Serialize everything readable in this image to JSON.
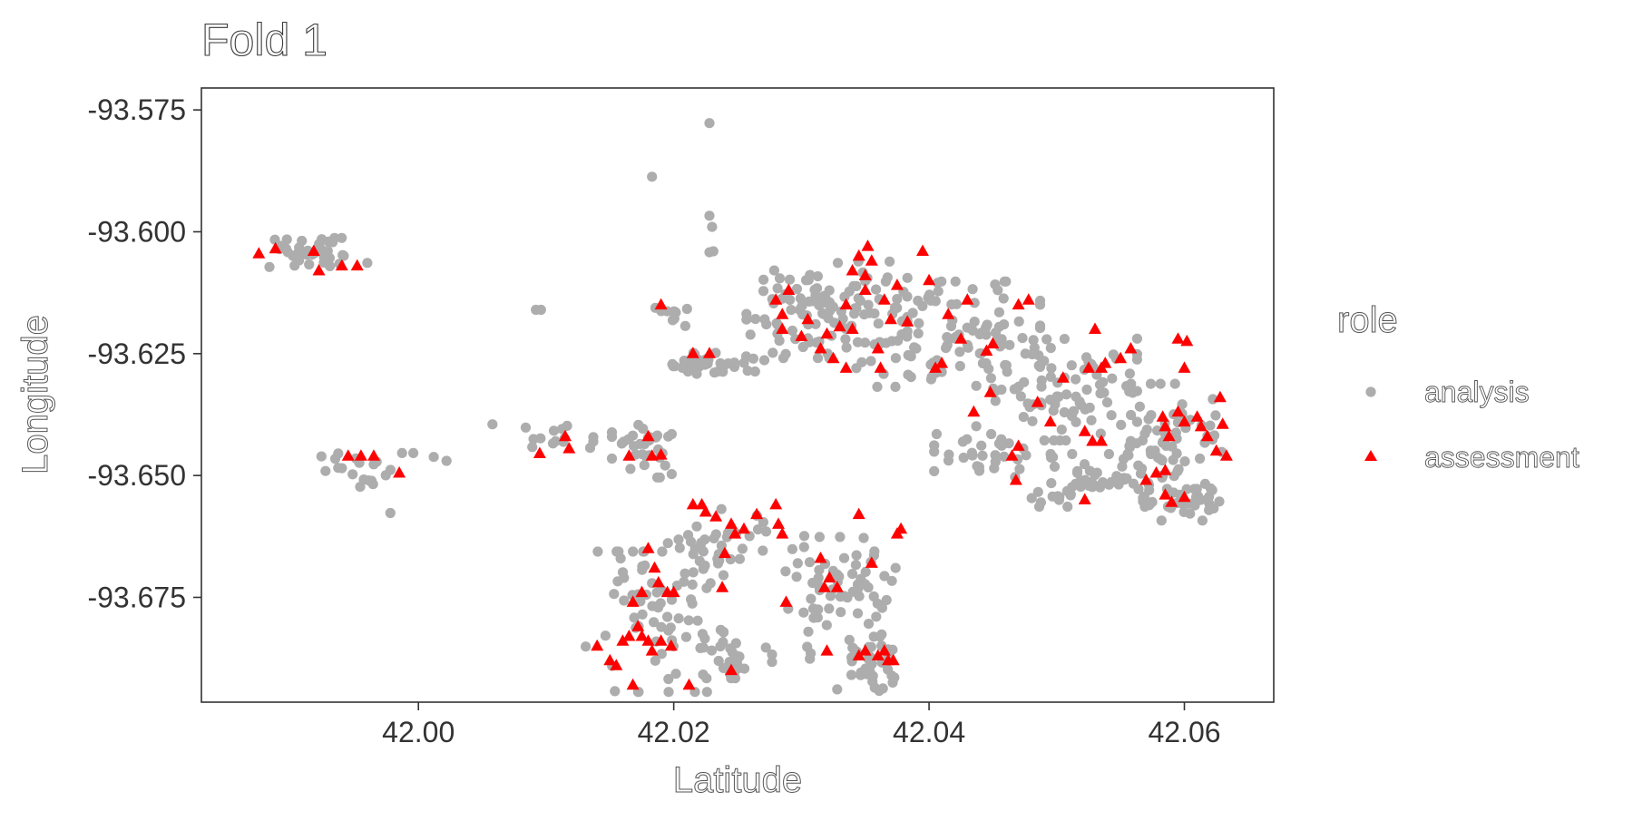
{
  "chart_data": {
    "type": "scatter",
    "title": "Fold 1",
    "xlabel": "Latitude",
    "ylabel": "Longitude",
    "xlim": [
      41.983,
      42.067
    ],
    "ylim": [
      -93.6965,
      -93.5705
    ],
    "x_ticks": [
      42.0,
      42.02,
      42.04,
      42.06
    ],
    "x_tick_labels": [
      "42.00",
      "42.02",
      "42.04",
      "42.06"
    ],
    "y_ticks": [
      -93.575,
      -93.6,
      -93.625,
      -93.65,
      -93.675
    ],
    "y_tick_labels": [
      "-93.575",
      "-93.600",
      "-93.625",
      "-93.650",
      "-93.675"
    ],
    "grid": false,
    "legend": {
      "title": "role",
      "position": "right",
      "entries": [
        {
          "label": "analysis",
          "shape": "circle",
          "color": "#ADADAD"
        },
        {
          "label": "assessment",
          "shape": "triangle",
          "color": "#FF0000"
        }
      ]
    },
    "series": [
      {
        "name": "analysis",
        "marker": "circle",
        "color": "#ADADAD",
        "clusters": [
          {
            "n": 36,
            "cx": 41.9915,
            "cy": -93.6045,
            "sx": 0.0025,
            "sy": 0.0018
          },
          {
            "n": 20,
            "cx": 41.996,
            "cy": -93.649,
            "sx": 0.002,
            "sy": 0.002
          },
          {
            "n": 14,
            "cx": 42.011,
            "cy": -93.642,
            "sx": 0.0015,
            "sy": 0.0013
          },
          {
            "n": 32,
            "cx": 42.0175,
            "cy": -93.645,
            "sx": 0.0013,
            "sy": 0.003
          },
          {
            "n": 10,
            "cx": 42.02,
            "cy": -93.617,
            "sx": 0.0008,
            "sy": 0.0015
          },
          {
            "n": 36,
            "cx": 42.0235,
            "cy": -93.627,
            "sx": 0.002,
            "sy": 0.0012
          },
          {
            "n": 110,
            "cx": 42.032,
            "cy": -93.616,
            "sx": 0.0035,
            "sy": 0.0055
          },
          {
            "n": 95,
            "cx": 42.0415,
            "cy": -93.621,
            "sx": 0.004,
            "sy": 0.006
          },
          {
            "n": 85,
            "cx": 42.05,
            "cy": -93.632,
            "sx": 0.0035,
            "sy": 0.006
          },
          {
            "n": 58,
            "cx": 42.0525,
            "cy": -93.651,
            "sx": 0.0032,
            "sy": 0.003
          },
          {
            "n": 30,
            "cx": 42.044,
            "cy": -93.646,
            "sx": 0.002,
            "sy": 0.0025
          },
          {
            "n": 65,
            "cx": 42.059,
            "cy": -93.642,
            "sx": 0.0022,
            "sy": 0.006
          },
          {
            "n": 30,
            "cx": 42.06,
            "cy": -93.656,
            "sx": 0.0018,
            "sy": 0.0018
          },
          {
            "n": 75,
            "cx": 42.0185,
            "cy": -93.68,
            "sx": 0.003,
            "sy": 0.008
          },
          {
            "n": 38,
            "cx": 42.0235,
            "cy": -93.665,
            "sx": 0.0022,
            "sy": 0.0045
          },
          {
            "n": 24,
            "cx": 42.025,
            "cy": -93.688,
            "sx": 0.0015,
            "sy": 0.002
          },
          {
            "n": 48,
            "cx": 42.032,
            "cy": -93.675,
            "sx": 0.0018,
            "sy": 0.007
          },
          {
            "n": 40,
            "cx": 42.0355,
            "cy": -93.678,
            "sx": 0.0015,
            "sy": 0.009
          },
          {
            "n": 18,
            "cx": 42.036,
            "cy": -93.69,
            "sx": 0.0012,
            "sy": 0.002
          }
        ],
        "points": [
          [
            42.0228,
            -93.5777
          ],
          [
            42.0183,
            -93.5887
          ],
          [
            42.0228,
            -93.5967
          ],
          [
            42.023,
            -93.599
          ],
          [
            42.0228,
            -93.6042
          ],
          [
            42.0231,
            -93.604
          ],
          [
            42.0092,
            -93.616
          ],
          [
            42.0096,
            -93.616
          ],
          [
            42.0058,
            -93.6395
          ],
          [
            41.9978,
            -93.6577
          ],
          [
            42.0022,
            -93.647
          ],
          [
            42.0012,
            -93.6462
          ]
        ]
      },
      {
        "name": "assessment",
        "marker": "triangle",
        "color": "#FF0000",
        "points": [
          [
            41.9875,
            -93.6045
          ],
          [
            41.9888,
            -93.6035
          ],
          [
            41.9918,
            -93.604
          ],
          [
            41.9922,
            -93.608
          ],
          [
            41.994,
            -93.607
          ],
          [
            41.9952,
            -93.607
          ],
          [
            41.9945,
            -93.646
          ],
          [
            41.9955,
            -93.646
          ],
          [
            41.9965,
            -93.646
          ],
          [
            41.9985,
            -93.6495
          ],
          [
            42.0095,
            -93.6455
          ],
          [
            42.0115,
            -93.642
          ],
          [
            42.0118,
            -93.6445
          ],
          [
            42.0165,
            -93.646
          ],
          [
            42.018,
            -93.642
          ],
          [
            42.0183,
            -93.646
          ],
          [
            42.019,
            -93.6458
          ],
          [
            42.019,
            -93.615
          ],
          [
            42.0215,
            -93.625
          ],
          [
            42.0228,
            -93.625
          ],
          [
            42.028,
            -93.614
          ],
          [
            42.0285,
            -93.617
          ],
          [
            42.029,
            -93.612
          ],
          [
            42.0285,
            -93.62
          ],
          [
            42.0305,
            -93.618
          ],
          [
            42.03,
            -93.6215
          ],
          [
            42.0315,
            -93.624
          ],
          [
            42.032,
            -93.621
          ],
          [
            42.0325,
            -93.626
          ],
          [
            42.033,
            -93.6195
          ],
          [
            42.0335,
            -93.615
          ],
          [
            42.034,
            -93.608
          ],
          [
            42.0335,
            -93.628
          ],
          [
            42.0345,
            -93.605
          ],
          [
            42.035,
            -93.609
          ],
          [
            42.0352,
            -93.603
          ],
          [
            42.0355,
            -93.606
          ],
          [
            42.036,
            -93.624
          ],
          [
            42.0362,
            -93.628
          ],
          [
            42.0365,
            -93.614
          ],
          [
            42.037,
            -93.618
          ],
          [
            42.0375,
            -93.611
          ],
          [
            42.034,
            -93.62
          ],
          [
            42.035,
            -93.612
          ],
          [
            42.0383,
            -93.6185
          ],
          [
            42.0395,
            -93.604
          ],
          [
            42.04,
            -93.61
          ],
          [
            42.0405,
            -93.628
          ],
          [
            42.041,
            -93.627
          ],
          [
            42.0415,
            -93.617
          ],
          [
            42.0425,
            -93.622
          ],
          [
            42.043,
            -93.614
          ],
          [
            42.0445,
            -93.6245
          ],
          [
            42.045,
            -93.623
          ],
          [
            42.0448,
            -93.633
          ],
          [
            42.047,
            -93.615
          ],
          [
            42.0478,
            -93.614
          ],
          [
            42.0485,
            -93.635
          ],
          [
            42.0495,
            -93.639
          ],
          [
            42.0505,
            -93.63
          ],
          [
            42.053,
            -93.62
          ],
          [
            42.0525,
            -93.628
          ],
          [
            42.0535,
            -93.628
          ],
          [
            42.0538,
            -93.627
          ],
          [
            42.055,
            -93.626
          ],
          [
            42.0558,
            -93.624
          ],
          [
            42.0435,
            -93.637
          ],
          [
            42.0465,
            -93.646
          ],
          [
            42.047,
            -93.644
          ],
          [
            42.0468,
            -93.651
          ],
          [
            42.0522,
            -93.641
          ],
          [
            42.0528,
            -93.643
          ],
          [
            42.0535,
            -93.643
          ],
          [
            42.0522,
            -93.655
          ],
          [
            42.057,
            -93.651
          ],
          [
            42.0578,
            -93.6495
          ],
          [
            42.0585,
            -93.649
          ],
          [
            42.0585,
            -93.654
          ],
          [
            42.059,
            -93.6555
          ],
          [
            42.06,
            -93.6545
          ],
          [
            42.0583,
            -93.638
          ],
          [
            42.0595,
            -93.637
          ],
          [
            42.06,
            -93.639
          ],
          [
            42.061,
            -93.638
          ],
          [
            42.0613,
            -93.64
          ],
          [
            42.0618,
            -93.642
          ],
          [
            42.0585,
            -93.64
          ],
          [
            42.0588,
            -93.642
          ],
          [
            42.06,
            -93.628
          ],
          [
            42.0595,
            -93.622
          ],
          [
            42.0602,
            -93.6225
          ],
          [
            42.0625,
            -93.645
          ],
          [
            42.0628,
            -93.634
          ],
          [
            42.063,
            -93.6395
          ],
          [
            42.0633,
            -93.646
          ],
          [
            42.0215,
            -93.656
          ],
          [
            42.0222,
            -93.656
          ],
          [
            42.0225,
            -93.6575
          ],
          [
            42.0233,
            -93.6585
          ],
          [
            42.0245,
            -93.66
          ],
          [
            42.0248,
            -93.662
          ],
          [
            42.024,
            -93.666
          ],
          [
            42.0238,
            -93.673
          ],
          [
            42.0255,
            -93.661
          ],
          [
            42.0265,
            -93.658
          ],
          [
            42.028,
            -93.656
          ],
          [
            42.0282,
            -93.66
          ],
          [
            42.0285,
            -93.662
          ],
          [
            42.0288,
            -93.676
          ],
          [
            42.018,
            -93.665
          ],
          [
            42.0185,
            -93.669
          ],
          [
            42.0188,
            -93.672
          ],
          [
            42.0175,
            -93.674
          ],
          [
            42.0168,
            -93.676
          ],
          [
            42.0195,
            -93.674
          ],
          [
            42.02,
            -93.674
          ],
          [
            42.014,
            -93.685
          ],
          [
            42.015,
            -93.688
          ],
          [
            42.0155,
            -93.689
          ],
          [
            42.016,
            -93.684
          ],
          [
            42.0165,
            -93.683
          ],
          [
            42.0172,
            -93.681
          ],
          [
            42.0175,
            -93.683
          ],
          [
            42.018,
            -93.684
          ],
          [
            42.0183,
            -93.686
          ],
          [
            42.019,
            -93.684
          ],
          [
            42.0198,
            -93.685
          ],
          [
            42.0168,
            -93.693
          ],
          [
            42.0212,
            -93.693
          ],
          [
            42.0245,
            -93.69
          ],
          [
            42.0315,
            -93.667
          ],
          [
            42.0322,
            -93.671
          ],
          [
            42.0318,
            -93.673
          ],
          [
            42.0328,
            -93.673
          ],
          [
            42.0345,
            -93.658
          ],
          [
            42.0355,
            -93.668
          ],
          [
            42.0375,
            -93.662
          ],
          [
            42.0378,
            -93.661
          ],
          [
            42.032,
            -93.686
          ],
          [
            42.0345,
            -93.687
          ],
          [
            42.035,
            -93.686
          ],
          [
            42.036,
            -93.687
          ],
          [
            42.0365,
            -93.686
          ],
          [
            42.0368,
            -93.688
          ],
          [
            42.0372,
            -93.688
          ]
        ]
      }
    ]
  }
}
